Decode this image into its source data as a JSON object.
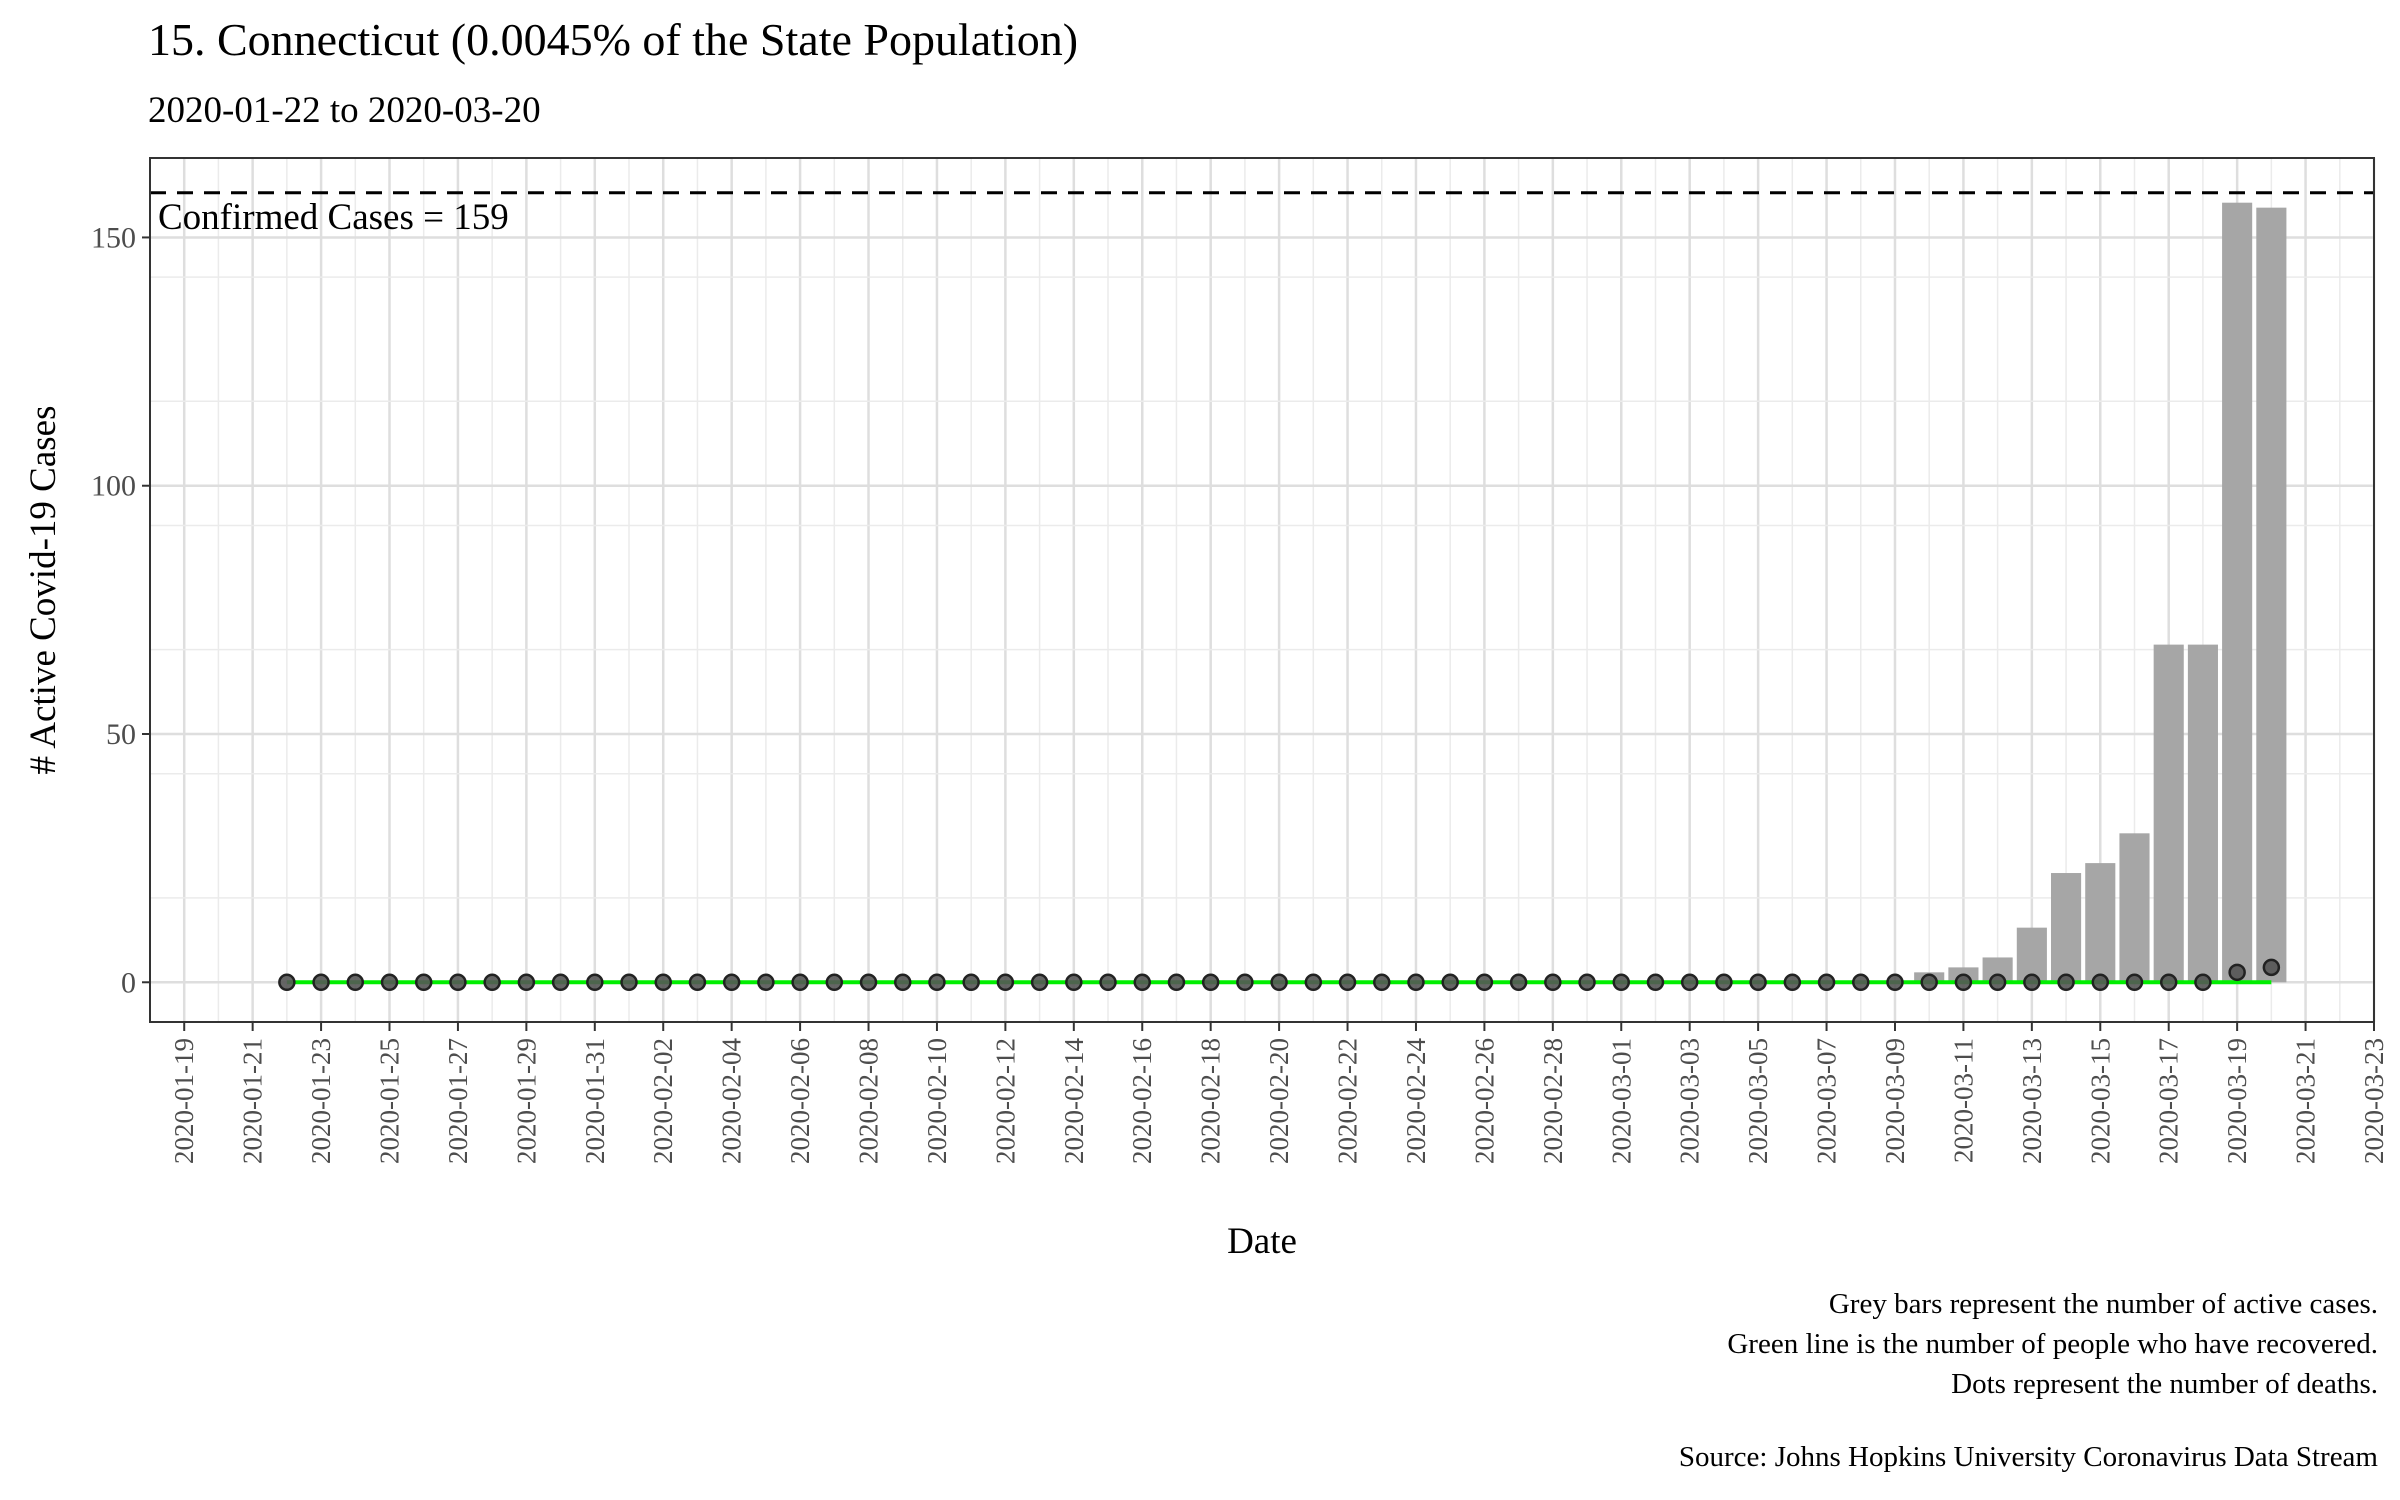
{
  "chart_data": {
    "type": "bar",
    "title": "15. Connecticut (0.0045% of the State Population)",
    "subtitle": "2020-01-22 to 2020-03-20",
    "xlabel": "Date",
    "ylabel": "# Active Covid-19 Cases",
    "start_date": "2020-01-22",
    "x_range": [
      "2020-01-18",
      "2020-03-23"
    ],
    "x_ticks": [
      "2020-01-19",
      "2020-01-21",
      "2020-01-23",
      "2020-01-25",
      "2020-01-27",
      "2020-01-29",
      "2020-01-31",
      "2020-02-02",
      "2020-02-04",
      "2020-02-06",
      "2020-02-08",
      "2020-02-10",
      "2020-02-12",
      "2020-02-14",
      "2020-02-16",
      "2020-02-18",
      "2020-02-20",
      "2020-02-22",
      "2020-02-24",
      "2020-02-26",
      "2020-02-28",
      "2020-03-01",
      "2020-03-03",
      "2020-03-05",
      "2020-03-07",
      "2020-03-09",
      "2020-03-11",
      "2020-03-13",
      "2020-03-15",
      "2020-03-17",
      "2020-03-19",
      "2020-03-21",
      "2020-03-23"
    ],
    "y_ticks": [
      0,
      50,
      100,
      150
    ],
    "ylim": [
      -8,
      166
    ],
    "grid": true,
    "reference_line": {
      "value": 159,
      "label": "Confirmed Cases = 159"
    },
    "series": [
      {
        "name": "Active cases",
        "kind": "bar",
        "color": "#a6a6a6",
        "values": [
          0,
          0,
          0,
          0,
          0,
          0,
          0,
          0,
          0,
          0,
          0,
          0,
          0,
          0,
          0,
          0,
          0,
          0,
          0,
          0,
          0,
          0,
          0,
          0,
          0,
          0,
          0,
          0,
          0,
          0,
          0,
          0,
          0,
          0,
          0,
          0,
          0,
          0,
          0,
          0,
          0,
          0,
          0,
          0,
          0,
          0,
          0,
          0,
          2,
          3,
          5,
          11,
          22,
          24,
          30,
          68,
          68,
          157,
          156
        ]
      },
      {
        "name": "Recovered",
        "kind": "line",
        "color": "#00ee00",
        "values": [
          0,
          0,
          0,
          0,
          0,
          0,
          0,
          0,
          0,
          0,
          0,
          0,
          0,
          0,
          0,
          0,
          0,
          0,
          0,
          0,
          0,
          0,
          0,
          0,
          0,
          0,
          0,
          0,
          0,
          0,
          0,
          0,
          0,
          0,
          0,
          0,
          0,
          0,
          0,
          0,
          0,
          0,
          0,
          0,
          0,
          0,
          0,
          0,
          0,
          0,
          0,
          0,
          0,
          0,
          0,
          0,
          0,
          0,
          0
        ]
      },
      {
        "name": "Deaths",
        "kind": "point",
        "color": "#555555",
        "values": [
          0,
          0,
          0,
          0,
          0,
          0,
          0,
          0,
          0,
          0,
          0,
          0,
          0,
          0,
          0,
          0,
          0,
          0,
          0,
          0,
          0,
          0,
          0,
          0,
          0,
          0,
          0,
          0,
          0,
          0,
          0,
          0,
          0,
          0,
          0,
          0,
          0,
          0,
          0,
          0,
          0,
          0,
          0,
          0,
          0,
          0,
          0,
          0,
          0,
          0,
          0,
          0,
          0,
          0,
          0,
          0,
          0,
          2,
          3
        ]
      }
    ]
  },
  "notes": [
    "Grey bars represent the number of active cases.",
    "Green line is the number of people who have recovered.",
    "Dots represent the number of deaths."
  ],
  "source": "Source: Johns Hopkins University Coronavirus Data Stream"
}
